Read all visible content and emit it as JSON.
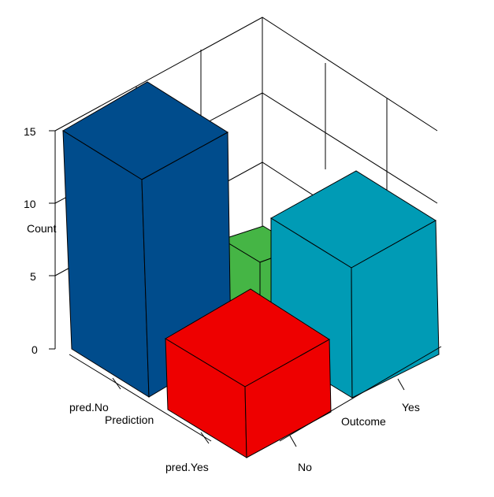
{
  "chart_data": {
    "type": "bar",
    "title": "",
    "zlabel": "Count",
    "xlabel": "Prediction",
    "ylabel": "Outcome",
    "x_categories": [
      "pred.No",
      "pred.Yes"
    ],
    "y_categories": [
      "No",
      "Yes"
    ],
    "z_ticks": [
      "0",
      "5",
      "10",
      "15"
    ],
    "zlim": [
      0,
      15
    ],
    "cells": [
      {
        "x": "pred.No",
        "y": "No",
        "value": 15,
        "color": "#004C8C"
      },
      {
        "x": "pred.No",
        "y": "Yes",
        "value": 5,
        "color": "#45B545"
      },
      {
        "x": "pred.Yes",
        "y": "No",
        "value": 5,
        "color": "#EE0000"
      },
      {
        "x": "pred.Yes",
        "y": "Yes",
        "value": 10,
        "color": "#009BB5"
      }
    ],
    "grid": true,
    "view": "3d-oblique"
  }
}
